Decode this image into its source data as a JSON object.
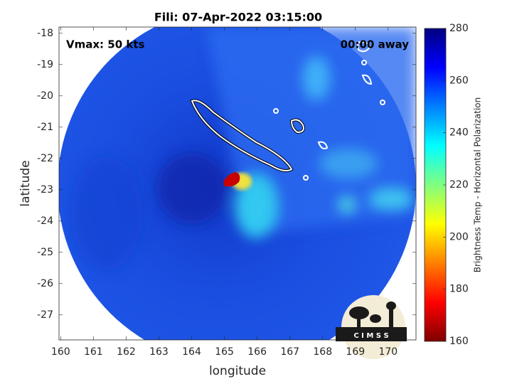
{
  "chart_data": {
    "type": "map",
    "title": "Fili: 07-Apr-2022 03:15:00",
    "xlabel": "longitude",
    "ylabel": "latitude",
    "xlim": [
      159.95,
      170.85
    ],
    "xticks": [
      160,
      161,
      162,
      163,
      164,
      165,
      166,
      167,
      168,
      169,
      170
    ],
    "ylim": [
      -27.8,
      -17.8
    ],
    "yticks": [
      -27,
      -26,
      -25,
      -24,
      -23,
      -22,
      -21,
      -20,
      -19,
      -18
    ],
    "annotations": [
      "Vmax: 50 kts",
      "00:00 away"
    ],
    "colorbar": {
      "label": "Brightness Temp - Horizontal Polarization",
      "lim": [
        160,
        280
      ],
      "ticks": [
        160,
        180,
        200,
        220,
        240,
        260,
        280
      ],
      "colors": [
        "#800000",
        "#ff0000",
        "#ff8000",
        "#ffff00",
        "#80ff80",
        "#00ffff",
        "#0080ff",
        "#0000ff",
        "#000080"
      ]
    },
    "logo_text": "C I M S S"
  }
}
